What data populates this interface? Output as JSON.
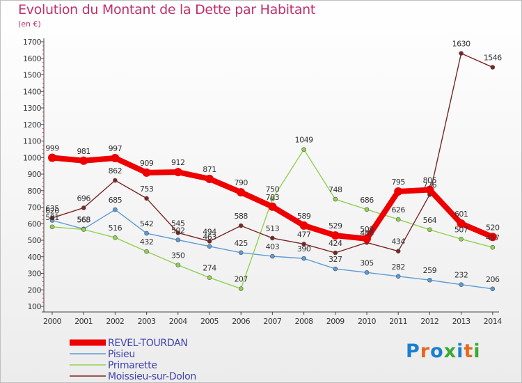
{
  "title": "Evolution du Montant de la Dette par Habitant",
  "subtitle": "(en €)",
  "logo": {
    "text": "Proxiti",
    "letter_colors": [
      "#1a7fd0",
      "#e8671c",
      "#1a7fd0",
      "#3aaa35",
      "#1a7fd0",
      "#e8671c",
      "#3aaa35"
    ]
  },
  "chart_data": {
    "type": "line",
    "title": "Evolution du Montant de la Dette par Habitant",
    "subtitle": "(en €)",
    "xlabel": "",
    "ylabel": "",
    "x": [
      "2000",
      "2001",
      "2002",
      "2003",
      "2004",
      "2005",
      "2006",
      "2007",
      "2008",
      "2009",
      "2010",
      "2011",
      "2012",
      "2013",
      "2014"
    ],
    "ylim": [
      100,
      1700
    ],
    "yticks": [
      100,
      200,
      300,
      400,
      500,
      600,
      700,
      800,
      900,
      1000,
      1100,
      1200,
      1300,
      1400,
      1500,
      1600,
      1700
    ],
    "grid": false,
    "legend": "bottom-left",
    "series": [
      {
        "name": "REVEL-TOURDAN",
        "color": "#ee0000",
        "width": 8,
        "values": [
          999,
          981,
          997,
          909,
          912,
          871,
          790,
          703,
          589,
          529,
          509,
          795,
          805,
          601,
          520
        ]
      },
      {
        "name": "Pisieu",
        "color": "#5b9bd5",
        "width": 1.4,
        "values": [
          620,
          568,
          685,
          542,
          502,
          463,
          425,
          403,
          390,
          327,
          305,
          282,
          259,
          232,
          206
        ]
      },
      {
        "name": "Primarette",
        "color": "#92d050",
        "width": 1.4,
        "values": [
          581,
          565,
          516,
          432,
          350,
          274,
          207,
          750,
          1049,
          748,
          686,
          626,
          564,
          507,
          457
        ]
      },
      {
        "name": "Moissieu-sur-Dolon",
        "color": "#7b2525",
        "width": 1.4,
        "values": [
          635,
          696,
          862,
          753,
          545,
          494,
          588,
          513,
          477,
          424,
          486,
          434,
          776,
          1630,
          1546
        ]
      }
    ]
  }
}
